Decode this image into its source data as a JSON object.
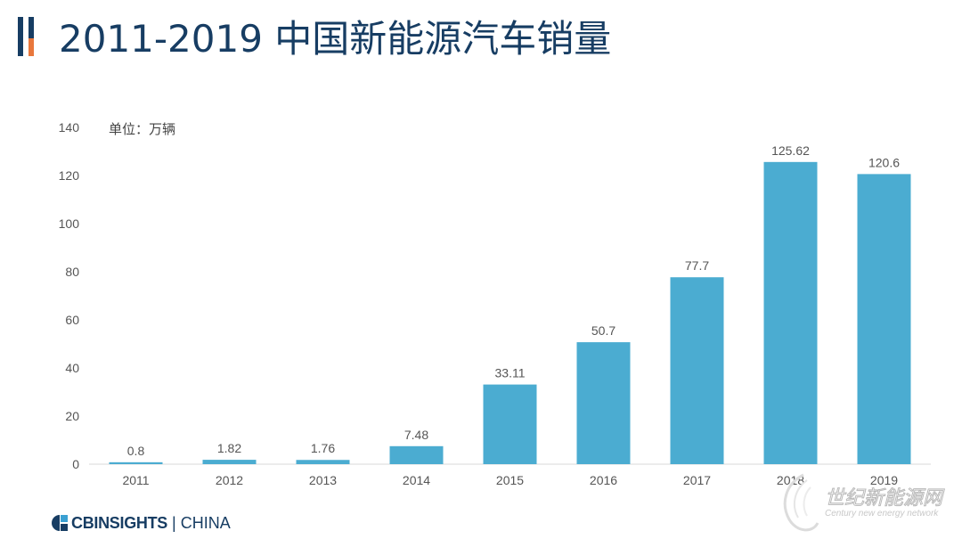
{
  "title": "2011-2019 中国新能源汽车销量",
  "footer": {
    "logo_text": "CBINSIGHTS",
    "separator": "|",
    "logo_region": "CHINA"
  },
  "watermark": {
    "text_cn": "世纪新能源网",
    "text_en": "Century new energy network"
  },
  "colors": {
    "bar": "#4bacd1",
    "title": "#173d63",
    "accent_orange": "#e8773c"
  },
  "chart_data": {
    "type": "bar",
    "title": "2011-2019 中国新能源汽车销量",
    "unit_label": "单位：万辆",
    "categories": [
      "2011",
      "2012",
      "2013",
      "2014",
      "2015",
      "2016",
      "2017",
      "2018",
      "2019"
    ],
    "values": [
      0.8,
      1.82,
      1.76,
      7.48,
      33.11,
      50.7,
      77.7,
      125.62,
      120.6
    ],
    "value_labels": [
      "0.8",
      "1.82",
      "1.76",
      "7.48",
      "33.11",
      "50.7",
      "77.7",
      "125.62",
      "120.6"
    ],
    "ylim": [
      0,
      140
    ],
    "yticks": [
      "0",
      "20",
      "40",
      "60",
      "80",
      "100",
      "120",
      "140"
    ],
    "grid": false,
    "legend": "none"
  }
}
